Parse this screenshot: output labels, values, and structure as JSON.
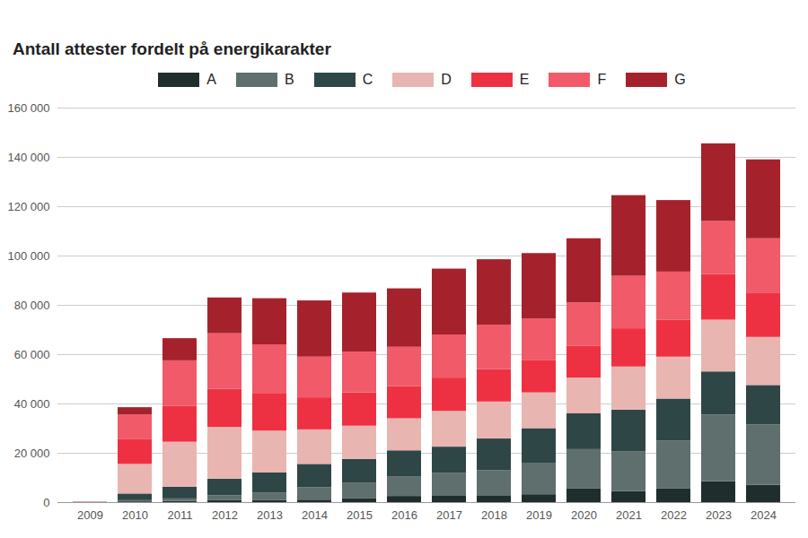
{
  "chart_data": {
    "type": "bar",
    "title": "Antall attester fordelt på energikarakter",
    "stacked": true,
    "grid": true,
    "legend": "top",
    "categories": [
      "2009",
      "2010",
      "2011",
      "2012",
      "2013",
      "2014",
      "2015",
      "2016",
      "2017",
      "2018",
      "2019",
      "2020",
      "2021",
      "2022",
      "2023",
      "2024"
    ],
    "series": [
      {
        "name": "A",
        "color": "#1f2d2d",
        "values": [
          0,
          300,
          500,
          800,
          800,
          1000,
          1500,
          2500,
          2800,
          2800,
          3200,
          5500,
          4500,
          5500,
          8500,
          7000
        ]
      },
      {
        "name": "B",
        "color": "#5e6f6d",
        "values": [
          0,
          500,
          1000,
          2000,
          3000,
          5000,
          6300,
          8000,
          9000,
          10200,
          12800,
          16000,
          16000,
          19500,
          27000,
          24500
        ]
      },
      {
        "name": "C",
        "color": "#2f4646",
        "values": [
          100,
          2700,
          4800,
          6700,
          8200,
          9500,
          9700,
          10500,
          10700,
          12800,
          14000,
          14500,
          17000,
          17000,
          17500,
          16000
        ]
      },
      {
        "name": "D",
        "color": "#e8b5b1",
        "values": [
          100,
          12000,
          18200,
          21000,
          17000,
          14000,
          13500,
          13000,
          14500,
          15000,
          14500,
          14500,
          17500,
          17000,
          21000,
          19500
        ]
      },
      {
        "name": "E",
        "color": "#ee3142",
        "values": [
          50,
          10000,
          14500,
          15500,
          15000,
          13000,
          13500,
          13000,
          13500,
          13200,
          13000,
          13000,
          15500,
          15000,
          18500,
          18000
        ]
      },
      {
        "name": "F",
        "color": "#f05a69",
        "values": [
          50,
          10000,
          18500,
          22500,
          20000,
          16500,
          16500,
          16000,
          17500,
          18000,
          17000,
          17500,
          21300,
          19500,
          21500,
          22000
        ]
      },
      {
        "name": "G",
        "color": "#a5222d",
        "values": [
          0,
          3000,
          9000,
          14500,
          18700,
          22800,
          24000,
          23700,
          26700,
          26500,
          26500,
          26000,
          32700,
          29000,
          31500,
          32000
        ]
      }
    ],
    "ylim": [
      0,
      160000
    ],
    "yticks": [
      {
        "value": 0,
        "label": "0"
      },
      {
        "value": 20000,
        "label": "20 000"
      },
      {
        "value": 40000,
        "label": "40 000"
      },
      {
        "value": 60000,
        "label": "60 000"
      },
      {
        "value": 80000,
        "label": "80 000"
      },
      {
        "value": 100000,
        "label": "100 000"
      },
      {
        "value": 120000,
        "label": "120 000"
      },
      {
        "value": 140000,
        "label": "140 000"
      },
      {
        "value": 160000,
        "label": "160 000"
      }
    ]
  }
}
